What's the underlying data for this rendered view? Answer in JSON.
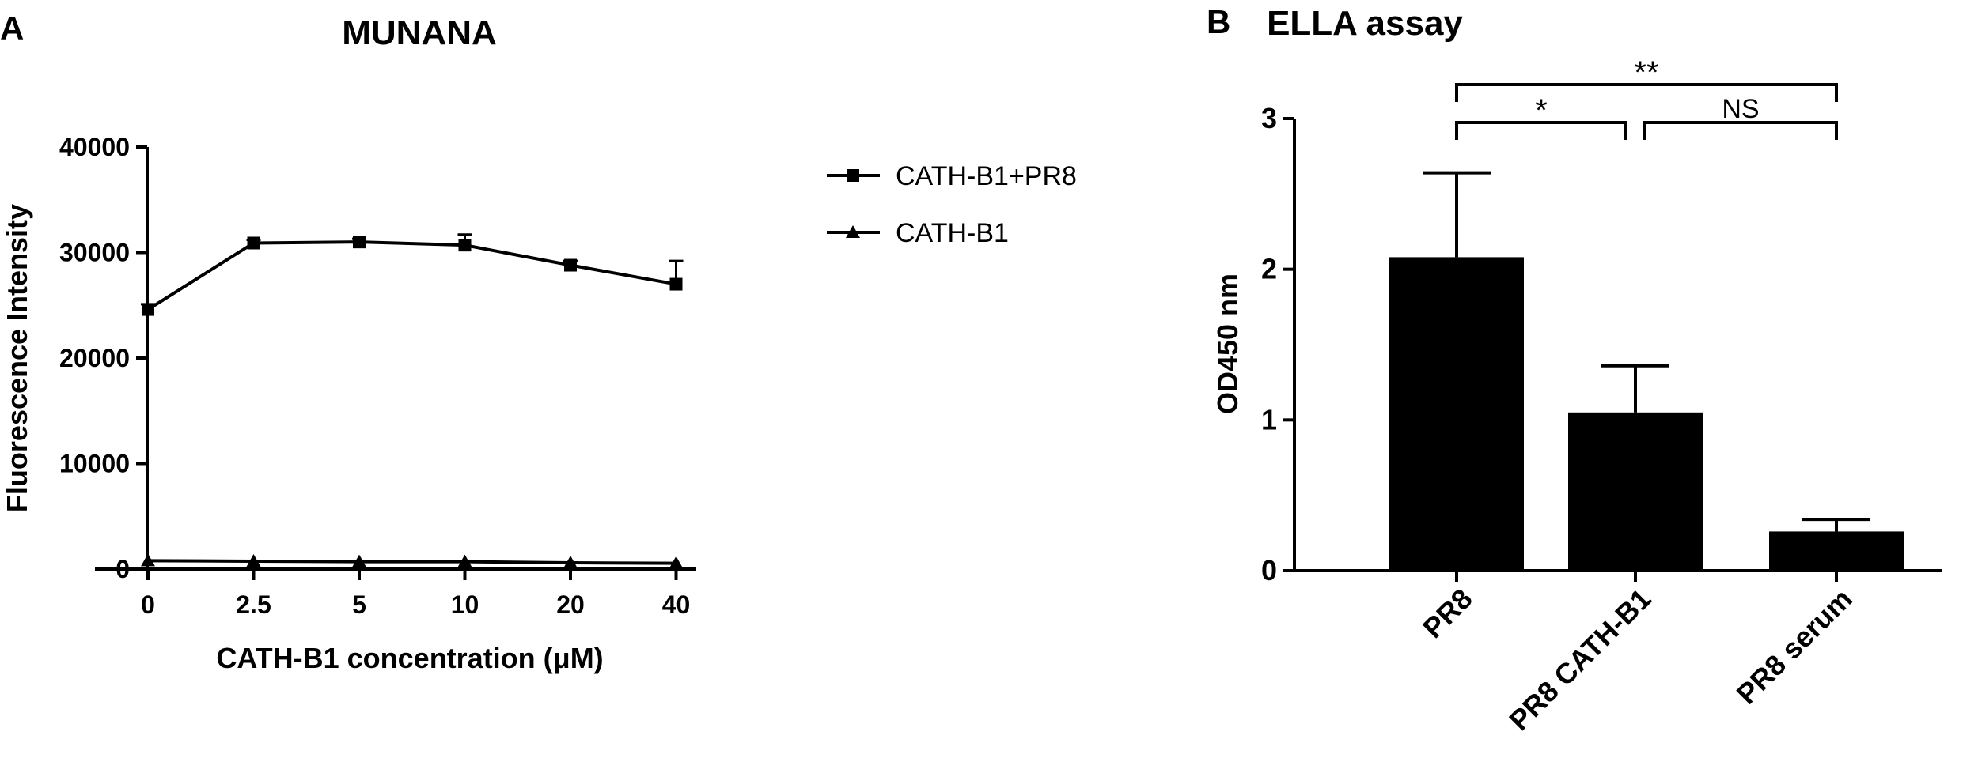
{
  "panels": {
    "a_letter": "A",
    "b_letter": "B"
  },
  "chart_data": [
    {
      "type": "line",
      "title": "MUNANA",
      "xlabel": "CATH-B1 concentration (μM)",
      "ylabel": "Fluorescence Intensity",
      "categories": [
        "0",
        "2.5",
        "5",
        "10",
        "20",
        "40"
      ],
      "ylim": [
        0,
        40000
      ],
      "yticks": [
        "0",
        "10000",
        "20000",
        "30000",
        "40000"
      ],
      "legend_position": "right",
      "series": [
        {
          "name": "CATH-B1+PR8",
          "marker": "square",
          "values": [
            24600,
            30900,
            31000,
            30700,
            28800,
            27000
          ],
          "errors": [
            500,
            300,
            300,
            1000,
            400,
            2200
          ]
        },
        {
          "name": "CATH-B1",
          "marker": "triangle",
          "values": [
            800,
            750,
            700,
            700,
            600,
            550
          ],
          "errors": [
            0,
            0,
            0,
            0,
            0,
            0
          ]
        }
      ]
    },
    {
      "type": "bar",
      "title": "ELLA assay",
      "xlabel": "",
      "ylabel": "OD450 nm",
      "categories": [
        "PR8",
        "PR8 CATH-B1",
        "PR8 serum"
      ],
      "values": [
        2.08,
        1.05,
        0.26
      ],
      "errors": [
        0.56,
        0.31,
        0.08
      ],
      "ylim": [
        0,
        3
      ],
      "yticks": [
        "0",
        "1",
        "2",
        "3"
      ],
      "significance": [
        {
          "from": 0,
          "to": 2,
          "label": "**"
        },
        {
          "from": 0,
          "to": 1,
          "label": "*"
        },
        {
          "from": 1,
          "to": 2,
          "label": "NS"
        }
      ]
    }
  ]
}
